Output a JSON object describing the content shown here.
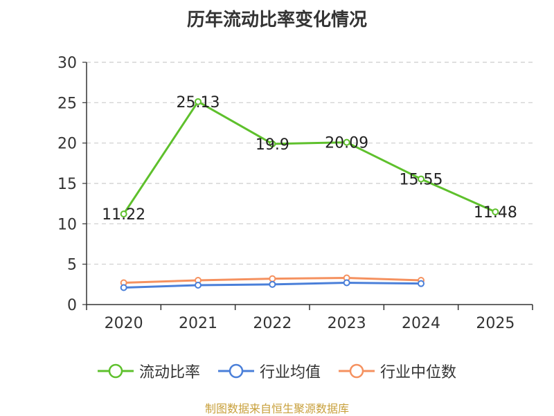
{
  "title": "历年流动比率变化情况",
  "source": "制图数据来自恒生聚源数据库",
  "chart_data": {
    "type": "line",
    "title": "历年流动比率变化情况",
    "categories": [
      "2020",
      "2021",
      "2022",
      "2023",
      "2024",
      "2025"
    ],
    "ylim": [
      0,
      30
    ],
    "yticks": [
      0,
      5,
      10,
      15,
      20,
      25,
      30
    ],
    "grid": "horizontal-dashed",
    "legend_position": "bottom",
    "series": [
      {
        "name": "流动比率",
        "color": "#5ec02c",
        "values": [
          11.22,
          25.13,
          19.9,
          20.09,
          15.55,
          11.48
        ],
        "labels": [
          "11.22",
          "25.13",
          "19.9",
          "20.09",
          "15.55",
          "11.48"
        ]
      },
      {
        "name": "行业均值",
        "color": "#4a7fd9",
        "values": [
          2.1,
          2.4,
          2.5,
          2.7,
          2.6,
          null
        ]
      },
      {
        "name": "行业中位数",
        "color": "#f5915f",
        "values": [
          2.7,
          3.0,
          3.2,
          3.3,
          3.0,
          null
        ]
      }
    ]
  }
}
